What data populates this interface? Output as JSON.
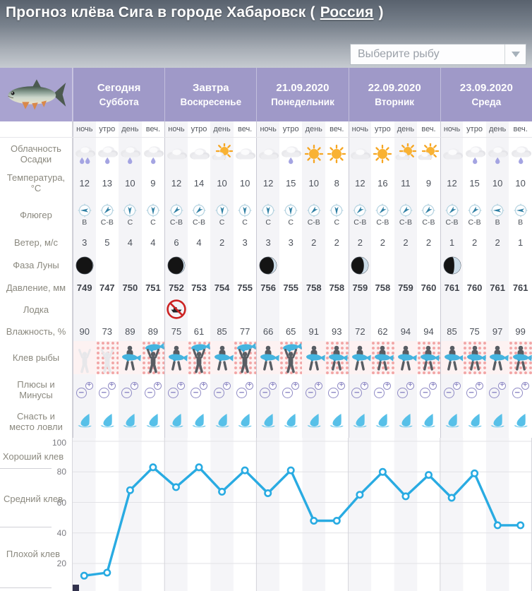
{
  "header": {
    "title_prefix": "Прогноз клёва Сига в городе Хабаровск (",
    "country": "Россия",
    "title_suffix": ")",
    "fish_select_placeholder": "Выберите рыбу"
  },
  "table": {
    "days": [
      {
        "title": "Сегодня",
        "subtitle": "Суббота"
      },
      {
        "title": "Завтра",
        "subtitle": "Воскресенье"
      },
      {
        "title": "21.09.2020",
        "subtitle": "Понедельник"
      },
      {
        "title": "22.09.2020",
        "subtitle": "Вторник"
      },
      {
        "title": "23.09.2020",
        "subtitle": "Среда"
      }
    ],
    "times": [
      "ночь",
      "утро",
      "день",
      "веч."
    ],
    "rows": {
      "clouds": {
        "label": "Облачность Осадки",
        "icons": [
          "rain2",
          "rain1",
          "rain1",
          "rain1",
          "cloud",
          "cloud",
          "suncloud",
          "cloud",
          "cloud",
          "rain1",
          "sun",
          "sun",
          "cloud",
          "sun",
          "suncloud",
          "suncloud",
          "cloud",
          "rain1",
          "rain1",
          "rain1"
        ]
      },
      "temperature": {
        "label": "Температура, °С",
        "values": [
          12,
          13,
          10,
          9,
          12,
          14,
          10,
          10,
          12,
          15,
          10,
          8,
          12,
          16,
          11,
          9,
          12,
          15,
          10,
          10
        ]
      },
      "wind_dir": {
        "label": "Флюгер",
        "values": [
          "В",
          "С-В",
          "С",
          "С",
          "С-В",
          "С-В",
          "С",
          "С",
          "С",
          "С",
          "С-В",
          "С",
          "С-В",
          "С-В",
          "С-В",
          "С-В",
          "С-В",
          "С-В",
          "В",
          "В"
        ]
      },
      "wind_speed": {
        "label": "Ветер, м/с",
        "values": [
          3,
          5,
          4,
          4,
          6,
          4,
          2,
          3,
          3,
          3,
          2,
          2,
          2,
          2,
          2,
          2,
          1,
          2,
          2,
          1
        ]
      },
      "moon": {
        "label": "Фаза Луны",
        "phase_lit_by_day": [
          0.02,
          0.08,
          0.16,
          0.26,
          0.38
        ]
      },
      "pressure": {
        "label": "Давление, мм",
        "values": [
          749,
          747,
          750,
          751,
          752,
          753,
          754,
          755,
          756,
          755,
          758,
          758,
          759,
          758,
          759,
          760,
          761,
          760,
          761,
          761
        ]
      },
      "boat": {
        "label": "Лодка",
        "no_boat_cells": [
          4
        ]
      },
      "humidity": {
        "label": "Влажность, %",
        "values": [
          90,
          73,
          89,
          89,
          75,
          61,
          85,
          77,
          66,
          65,
          91,
          93,
          72,
          62,
          94,
          94,
          85,
          75,
          97,
          99
        ]
      },
      "bite": {
        "label": "Клев рыбы",
        "icons": [
          "poor",
          "poor",
          "medium",
          "good",
          "medium",
          "good",
          "medium",
          "good",
          "medium",
          "good",
          "medium",
          "medium",
          "medium",
          "medium",
          "medium",
          "medium",
          "medium",
          "medium",
          "medium",
          "medium"
        ]
      },
      "pros": {
        "label": "Плюсы и Минусы"
      },
      "tackle": {
        "label": "Снасть и место ловли"
      }
    }
  },
  "chart_data": {
    "type": "line",
    "values": [
      12,
      14,
      68,
      83,
      70,
      83,
      67,
      81,
      66,
      81,
      48,
      48,
      65,
      80,
      64,
      78,
      63,
      79,
      45,
      45
    ],
    "x_slots": [
      "ночь",
      "утро",
      "день",
      "веч."
    ],
    "days": 5,
    "points_per_day": 4,
    "yticks": [
      20,
      40,
      60,
      80,
      100
    ],
    "ylim": [
      0,
      100
    ],
    "zone_labels": [
      "Хороший клев",
      "Средний клев",
      "Плохой клев"
    ],
    "line_color": "#29abe2",
    "grid": true,
    "legend_position": "left"
  },
  "colors": {
    "header_purple": "#9f99c8",
    "chart_line": "#29abe2",
    "bite_pattern_pink": "#f2a5a5",
    "column_stripe": "#f4f4f7",
    "no_boat_red": "#cc2222"
  }
}
